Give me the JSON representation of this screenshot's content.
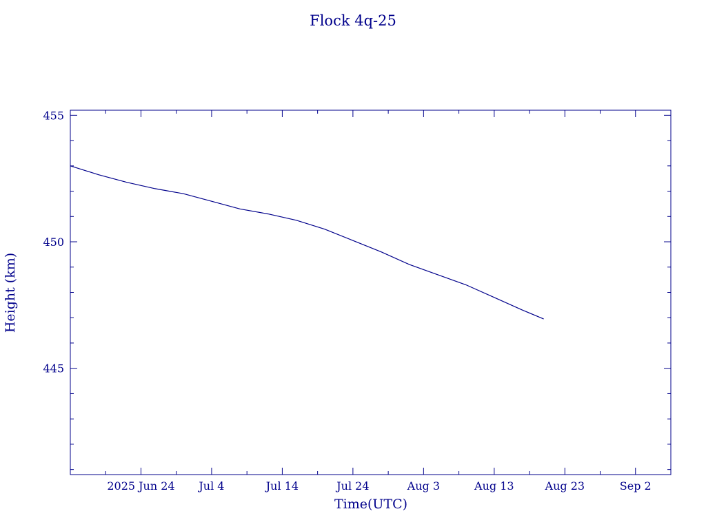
{
  "chart_data": {
    "type": "line",
    "title": "Flock 4q-25",
    "xlabel": "Time(UTC)",
    "ylabel": "Height (km)",
    "colors": {
      "axes": "#00008b",
      "line": "#00008b"
    },
    "xlim": [
      "2025-06-14",
      "2025-09-07"
    ],
    "ylim": [
      440.8,
      455.2
    ],
    "x_ticks": [
      {
        "date": "2025-06-24",
        "label": "2025 Jun 24"
      },
      {
        "date": "2025-07-04",
        "label": "Jul  4"
      },
      {
        "date": "2025-07-14",
        "label": "Jul 14"
      },
      {
        "date": "2025-07-24",
        "label": "Jul 24"
      },
      {
        "date": "2025-08-03",
        "label": "Aug  3"
      },
      {
        "date": "2025-08-13",
        "label": "Aug 13"
      },
      {
        "date": "2025-08-23",
        "label": "Aug 23"
      },
      {
        "date": "2025-09-02",
        "label": "Sep  2"
      }
    ],
    "y_ticks": [
      445,
      450,
      455
    ],
    "series": [
      {
        "x": [
          "2025-06-14",
          "2025-06-18",
          "2025-06-22",
          "2025-06-26",
          "2025-06-30",
          "2025-07-04",
          "2025-07-08",
          "2025-07-12",
          "2025-07-16",
          "2025-07-20",
          "2025-07-24",
          "2025-07-28",
          "2025-08-01",
          "2025-08-05",
          "2025-08-09",
          "2025-08-13",
          "2025-08-17",
          "2025-08-20"
        ],
        "y": [
          453.0,
          452.65,
          452.35,
          452.1,
          451.9,
          451.6,
          451.3,
          451.1,
          450.85,
          450.5,
          450.05,
          449.6,
          449.1,
          448.7,
          448.3,
          447.8,
          447.3,
          446.95
        ]
      }
    ]
  }
}
